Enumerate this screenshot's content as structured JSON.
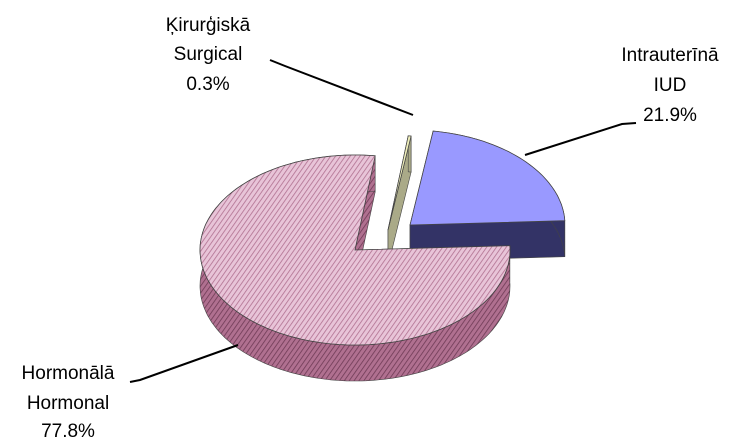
{
  "chart_data": {
    "type": "pie",
    "categories": [
      "Ķirurģiskā",
      "Intrauterīnā",
      "Hormonālā"
    ],
    "categories_en": [
      "Surgical",
      "IUD",
      "Hormonal"
    ],
    "values": [
      0.3,
      21.9,
      77.8
    ],
    "value_labels": [
      "0.3%",
      "21.9%",
      "77.8%"
    ],
    "colors": [
      "#eeeebb",
      "#9999ff",
      "#cc99bb"
    ],
    "side_colors": [
      "#aaaa88",
      "#333366",
      "#885570"
    ]
  }
}
